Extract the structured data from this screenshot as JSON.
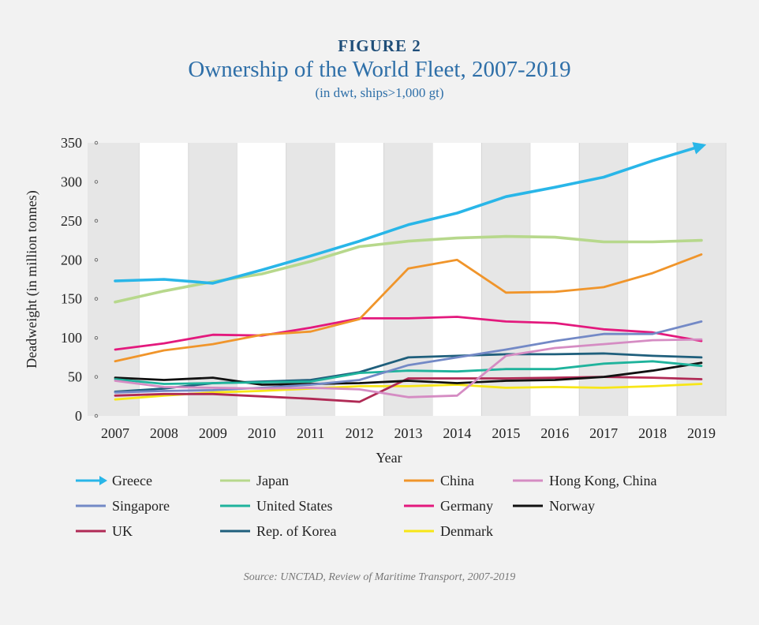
{
  "figure_label": "FIGURE 2",
  "title": "Ownership of the World Fleet, 2007-2019",
  "subtitle": "(in dwt, ships>1,000 gt)",
  "source": "Source: UNCTAD, Review of Maritime Transport, 2007-2019",
  "chart_data": {
    "type": "line",
    "title": "Ownership of the World Fleet, 2007-2019",
    "subtitle": "(in dwt, ships>1,000 gt)",
    "xlabel": "Year",
    "ylabel": "Deadweight (in million tonnes)",
    "x": [
      "2007",
      "2008",
      "2009",
      "2010",
      "2011",
      "2012",
      "2013",
      "2014",
      "2015",
      "2016",
      "2017",
      "2018",
      "2019"
    ],
    "ylim": [
      0,
      350
    ],
    "yticks": [
      0,
      50,
      100,
      150,
      200,
      250,
      300,
      350
    ],
    "grid": "vertical bands",
    "legend_position": "bottom",
    "series": [
      {
        "name": "Greece",
        "color": "#29b6e8",
        "values": [
          173,
          175,
          170,
          187,
          205,
          224,
          245,
          260,
          281,
          293,
          306,
          327,
          346
        ]
      },
      {
        "name": "Japan",
        "color": "#b7d88c",
        "values": [
          146,
          160,
          172,
          182,
          198,
          217,
          224,
          228,
          230,
          229,
          223,
          223,
          225
        ]
      },
      {
        "name": "China",
        "color": "#f0952b",
        "values": [
          70,
          84,
          92,
          104,
          108,
          124,
          189,
          200,
          158,
          159,
          165,
          183,
          207
        ]
      },
      {
        "name": "Hong Kong, China",
        "color": "#d58cc3",
        "values": [
          45,
          37,
          36,
          35,
          36,
          34,
          24,
          26,
          77,
          87,
          92,
          97,
          98
        ]
      },
      {
        "name": "Singapore",
        "color": "#7389c6",
        "values": [
          30,
          32,
          33,
          36,
          40,
          46,
          65,
          75,
          85,
          96,
          105,
          105,
          121
        ]
      },
      {
        "name": "United States",
        "color": "#1fb39c",
        "values": [
          47,
          41,
          42,
          43,
          44,
          55,
          58,
          57,
          60,
          60,
          67,
          70,
          64
        ]
      },
      {
        "name": "Germany",
        "color": "#e3197d",
        "values": [
          85,
          93,
          104,
          103,
          113,
          125,
          125,
          127,
          121,
          119,
          111,
          107,
          96
        ]
      },
      {
        "name": "Norway",
        "color": "#111111",
        "values": [
          49,
          46,
          49,
          40,
          41,
          42,
          45,
          42,
          45,
          46,
          50,
          58,
          68
        ]
      },
      {
        "name": "UK",
        "color": "#b02a55",
        "values": [
          26,
          28,
          28,
          25,
          22,
          18,
          48,
          48,
          48,
          49,
          50,
          49,
          47
        ]
      },
      {
        "name": "Rep. of Korea",
        "color": "#1f5f7c",
        "values": [
          31,
          35,
          42,
          44,
          46,
          56,
          75,
          77,
          79,
          79,
          80,
          77,
          75
        ]
      },
      {
        "name": "Denmark",
        "color": "#f7e617",
        "values": [
          21,
          26,
          30,
          32,
          35,
          38,
          38,
          40,
          36,
          37,
          36,
          38,
          41
        ]
      }
    ]
  }
}
